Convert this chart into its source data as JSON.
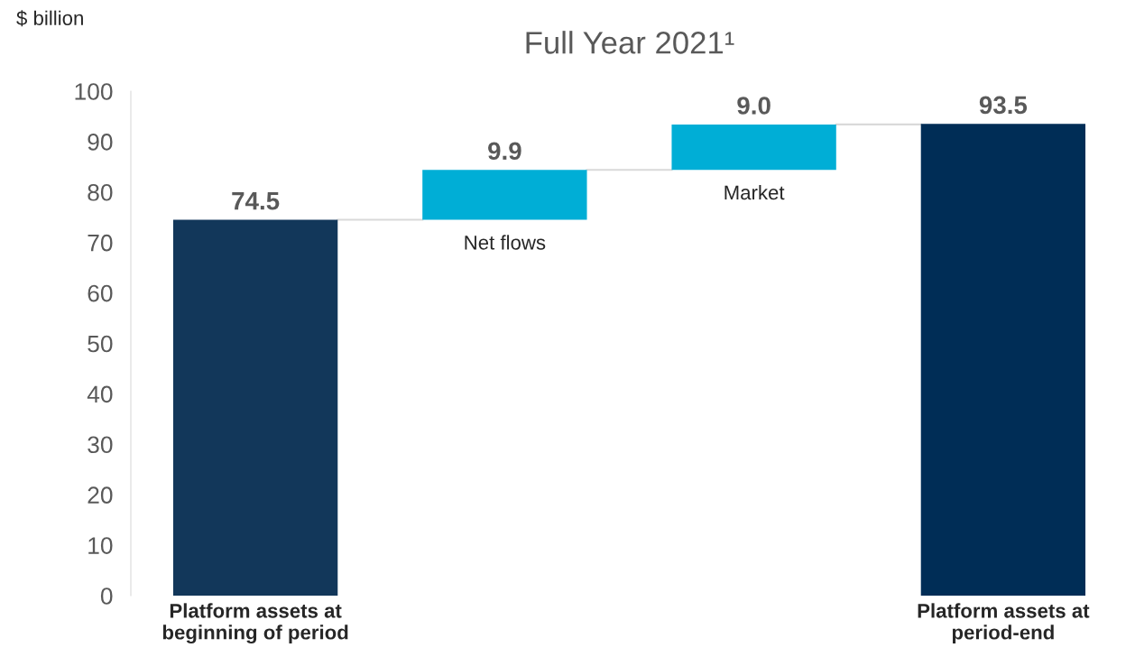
{
  "chart_data": {
    "type": "bar",
    "title": "Full Year 2021¹",
    "ylabel": "$ billion",
    "categories": [
      "Platform assets at\nbeginning of period",
      "Net flows",
      "Market",
      "Platform assets at\nperiod-end"
    ],
    "values": [
      74.5,
      9.9,
      9.0,
      93.5
    ],
    "base": [
      0,
      74.5,
      84.4,
      0
    ],
    "colors": [
      "#12375a",
      "#00aed6",
      "#00aed6",
      "#002d56"
    ],
    "value_labels": [
      "74.5",
      "9.9",
      "9.0",
      "93.5"
    ],
    "ylim": [
      0,
      100
    ],
    "yticks": [
      0,
      10,
      20,
      30,
      40,
      50,
      60,
      70,
      80,
      90,
      100
    ],
    "grid": false,
    "legend": false
  }
}
